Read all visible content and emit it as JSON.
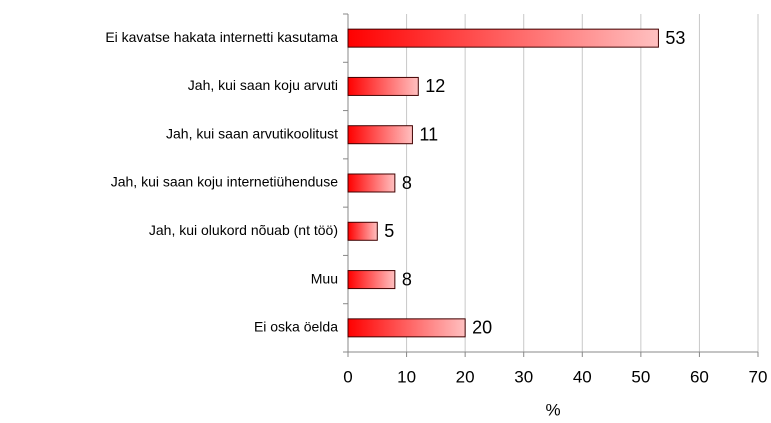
{
  "chart_data": {
    "type": "bar",
    "orientation": "horizontal",
    "categories": [
      "Ei kavatse hakata internetti kasutama",
      "Jah, kui saan koju arvuti",
      "Jah, kui saan arvutikoolitust",
      "Jah, kui saan koju internetiühenduse",
      "Jah, kui olukord nõuab (nt töö)",
      "Muu",
      "Ei oska öelda"
    ],
    "values": [
      53,
      12,
      11,
      8,
      5,
      8,
      20
    ],
    "color": "#ff0000",
    "xlabel": "%",
    "xlim": [
      0,
      70
    ],
    "xticks": [
      0,
      10,
      20,
      30,
      40,
      50,
      60,
      70
    ],
    "grid": true
  }
}
